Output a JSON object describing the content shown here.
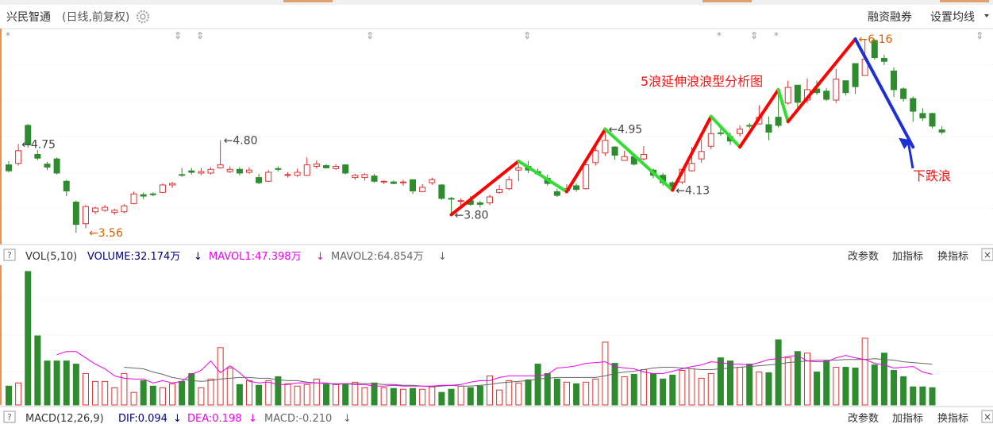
{
  "header": {
    "title": "兴民智通",
    "subtitle": "(日线,前复权)",
    "margin_trading": "融资融券",
    "ma_settings": "设置均线"
  },
  "annotations": {
    "wave_title": "5浪延伸浪浪型分析图",
    "down_wave": "下跌浪"
  },
  "price_labels": [
    {
      "text": "4.75",
      "idx": 1,
      "price": 4.75,
      "side": "right"
    },
    {
      "text": "3.56",
      "idx": 8,
      "price": 3.56,
      "side": "right"
    },
    {
      "text": "4.80",
      "idx": 22,
      "price": 4.8,
      "side": "right"
    },
    {
      "text": "3.80",
      "idx": 46,
      "price": 3.8,
      "side": "right"
    },
    {
      "text": "4.95",
      "idx": 62,
      "price": 4.95,
      "side": "right"
    },
    {
      "text": "4.13",
      "idx": 69,
      "price": 4.13,
      "side": "right"
    },
    {
      "text": "6.16",
      "idx": 88,
      "price": 6.16,
      "side": "right"
    }
  ],
  "vol_panel": {
    "help": "?",
    "title": "VOL(5,10)",
    "volume": "VOLUME:32.174万",
    "mavol1": "MAVOL1:47.398万",
    "mavol2": "MAVOL2:64.854万",
    "params": "改参数",
    "add_indicator": "加指标",
    "switch_indicator": "换指标",
    "close": "×"
  },
  "macd_panel": {
    "help": "?",
    "title": "MACD(12,26,9)",
    "dif": "DIF:0.094",
    "dea": "DEA:0.198",
    "macd": "MACD:-0.210",
    "params": "改参数",
    "add_indicator": "加指标",
    "switch_indicator": "换指标",
    "close": "×"
  },
  "colors": {
    "up": "#e03131",
    "down": "#2e8b2e",
    "wave_red": "#ff0000",
    "wave_green": "#33dd33",
    "wave_blue": "#1f2fd6",
    "label_orange": "#e06000",
    "ma1": "#ee00ee",
    "ma2": "#666666",
    "volume_text": "#000080"
  },
  "chart_data": [
    {
      "type": "candlestick",
      "title": "兴民智通 (日线,前复权)",
      "ylim": [
        3.4,
        6.3
      ],
      "candles": [
        [
          4.47,
          4.39,
          4.52,
          4.37
        ],
        [
          4.49,
          4.66,
          4.75,
          4.46
        ],
        [
          5.0,
          4.74,
          5.02,
          4.7
        ],
        [
          4.61,
          4.56,
          4.67,
          4.53
        ],
        [
          4.48,
          4.44,
          4.51,
          4.4
        ],
        [
          4.55,
          4.36,
          4.57,
          4.34
        ],
        [
          4.25,
          4.12,
          4.27,
          4.05
        ],
        [
          3.97,
          3.67,
          3.99,
          3.56
        ],
        [
          3.68,
          3.91,
          3.93,
          3.62
        ],
        [
          3.84,
          3.89,
          3.91,
          3.81
        ],
        [
          3.86,
          3.9,
          3.93,
          3.84
        ],
        [
          3.83,
          3.86,
          3.88,
          3.8
        ],
        [
          3.84,
          3.92,
          3.94,
          3.82
        ],
        [
          3.95,
          4.08,
          4.11,
          3.94
        ],
        [
          4.07,
          4.05,
          4.1,
          4.01
        ],
        [
          4.08,
          4.07,
          4.1,
          4.05
        ],
        [
          4.1,
          4.2,
          4.22,
          4.09
        ],
        [
          4.2,
          4.22,
          4.24,
          4.16
        ],
        [
          4.34,
          4.33,
          4.43,
          4.31
        ],
        [
          4.39,
          4.37,
          4.43,
          4.34
        ],
        [
          4.36,
          4.38,
          4.43,
          4.33
        ],
        [
          4.36,
          4.41,
          4.44,
          4.34
        ],
        [
          4.43,
          4.47,
          4.8,
          4.42
        ],
        [
          4.38,
          4.41,
          4.45,
          4.36
        ],
        [
          4.41,
          4.36,
          4.44,
          4.33
        ],
        [
          4.37,
          4.4,
          4.44,
          4.35
        ],
        [
          4.3,
          4.23,
          4.35,
          4.21
        ],
        [
          4.25,
          4.37,
          4.4,
          4.24
        ],
        [
          4.42,
          4.41,
          4.45,
          4.38
        ],
        [
          4.33,
          4.34,
          4.37,
          4.3
        ],
        [
          4.33,
          4.37,
          4.42,
          4.31
        ],
        [
          4.33,
          4.47,
          4.57,
          4.32
        ],
        [
          4.45,
          4.48,
          4.53,
          4.42
        ],
        [
          4.46,
          4.43,
          4.48,
          4.42
        ],
        [
          4.42,
          4.45,
          4.48,
          4.4
        ],
        [
          4.47,
          4.36,
          4.48,
          4.34
        ],
        [
          4.3,
          4.33,
          4.35,
          4.27
        ],
        [
          4.3,
          4.34,
          4.36,
          4.26
        ],
        [
          4.32,
          4.25,
          4.35,
          4.23
        ],
        [
          4.24,
          4.25,
          4.26,
          4.21
        ],
        [
          4.24,
          4.22,
          4.26,
          4.21
        ],
        [
          4.23,
          4.24,
          4.27,
          4.19
        ],
        [
          4.27,
          4.12,
          4.28,
          4.08
        ],
        [
          4.11,
          4.17,
          4.21,
          4.1
        ],
        [
          4.23,
          4.27,
          4.3,
          4.2
        ],
        [
          4.2,
          4.02,
          4.21,
          4.0
        ],
        [
          4.02,
          4.01,
          4.04,
          3.8
        ],
        [
          3.98,
          3.99,
          4.02,
          3.92
        ],
        [
          3.99,
          3.94,
          4.05,
          3.92
        ],
        [
          3.96,
          3.94,
          3.99,
          3.9
        ],
        [
          3.96,
          4.04,
          4.07,
          3.93
        ],
        [
          4.1,
          4.14,
          4.2,
          4.08
        ],
        [
          4.15,
          4.27,
          4.32,
          4.13
        ],
        [
          4.4,
          4.43,
          4.48,
          4.25
        ],
        [
          4.45,
          4.4,
          4.52,
          4.36
        ],
        [
          4.38,
          4.35,
          4.42,
          4.33
        ],
        [
          4.29,
          4.22,
          4.34,
          4.19
        ],
        [
          4.11,
          4.06,
          4.15,
          4.04
        ],
        [
          4.13,
          4.15,
          4.21,
          4.11
        ],
        [
          4.19,
          4.14,
          4.22,
          4.11
        ],
        [
          4.15,
          4.47,
          4.48,
          4.14
        ],
        [
          4.5,
          4.66,
          4.71,
          4.46
        ],
        [
          4.63,
          4.8,
          4.95,
          4.59
        ],
        [
          4.71,
          4.6,
          4.72,
          4.54
        ],
        [
          4.53,
          4.58,
          4.66,
          4.53
        ],
        [
          4.58,
          4.48,
          4.59,
          4.46
        ],
        [
          4.55,
          4.61,
          4.72,
          4.53
        ],
        [
          4.4,
          4.33,
          4.42,
          4.29
        ],
        [
          4.33,
          4.23,
          4.36,
          4.19
        ],
        [
          4.23,
          4.17,
          4.25,
          4.13
        ],
        [
          4.24,
          4.41,
          4.42,
          4.21
        ],
        [
          4.39,
          4.49,
          4.71,
          4.38
        ],
        [
          4.55,
          4.65,
          4.81,
          4.5
        ],
        [
          4.72,
          4.89,
          5.12,
          4.68
        ],
        [
          4.9,
          4.89,
          4.96,
          4.86
        ],
        [
          4.85,
          4.79,
          4.9,
          4.74
        ],
        [
          4.89,
          4.95,
          5.0,
          4.85
        ],
        [
          5.0,
          4.99,
          5.03,
          4.96
        ],
        [
          5.02,
          5.11,
          5.27,
          5.01
        ],
        [
          5.01,
          4.91,
          5.12,
          4.8
        ],
        [
          5.11,
          5.0,
          5.48,
          4.97
        ],
        [
          5.3,
          5.51,
          5.6,
          5.28
        ],
        [
          5.54,
          5.31,
          5.54,
          5.21
        ],
        [
          5.34,
          5.48,
          5.63,
          5.3
        ],
        [
          5.49,
          5.44,
          5.6,
          5.41
        ],
        [
          5.46,
          5.35,
          5.5,
          5.33
        ],
        [
          5.34,
          5.62,
          5.76,
          5.3
        ],
        [
          5.6,
          5.44,
          5.6,
          5.4
        ],
        [
          5.83,
          5.52,
          5.83,
          5.42
        ],
        [
          5.67,
          5.89,
          6.15,
          5.68
        ],
        [
          6.14,
          5.91,
          6.16,
          5.88
        ],
        [
          5.9,
          5.86,
          5.95,
          5.81
        ],
        [
          5.73,
          5.48,
          5.78,
          5.38
        ],
        [
          5.49,
          5.36,
          5.51,
          5.32
        ],
        [
          5.36,
          5.19,
          5.39,
          5.05
        ],
        [
          5.16,
          5.1,
          5.23,
          5.06
        ],
        [
          5.16,
          4.99,
          5.17,
          4.96
        ],
        [
          4.94,
          4.91,
          4.99,
          4.88
        ]
      ],
      "wave_lines": [
        {
          "color": "red",
          "points": [
            [
              46,
              3.8
            ],
            [
              53,
              4.52
            ]
          ]
        },
        {
          "color": "green",
          "points": [
            [
              53,
              4.52
            ],
            [
              58,
              4.11
            ]
          ]
        },
        {
          "color": "red",
          "points": [
            [
              58,
              4.11
            ],
            [
              62,
              4.95
            ]
          ]
        },
        {
          "color": "green",
          "points": [
            [
              62,
              4.95
            ],
            [
              69,
              4.13
            ]
          ]
        },
        {
          "color": "red",
          "points": [
            [
              69,
              4.13
            ],
            [
              73,
              5.12
            ]
          ]
        },
        {
          "color": "green",
          "points": [
            [
              73,
              5.12
            ],
            [
              76,
              4.71
            ]
          ]
        },
        {
          "color": "red",
          "points": [
            [
              76,
              4.71
            ],
            [
              80,
              5.48
            ]
          ]
        },
        {
          "color": "green",
          "points": [
            [
              80,
              5.48
            ],
            [
              81,
              5.05
            ]
          ]
        },
        {
          "color": "red",
          "points": [
            [
              81,
              5.05
            ],
            [
              88,
              6.16
            ]
          ]
        },
        {
          "color": "blue",
          "points": [
            [
              88,
              6.16
            ],
            [
              94,
              4.71
            ]
          ]
        }
      ]
    },
    {
      "type": "bar",
      "title": "VOL(5,10)",
      "ylim": [
        0,
        176
      ],
      "volume": [
        24,
        28,
        170,
        88,
        56,
        56,
        56,
        52,
        40,
        30,
        30,
        22,
        40,
        16,
        31,
        24,
        22,
        27,
        30,
        40,
        22,
        33,
        73,
        47,
        26,
        31,
        25,
        31,
        36,
        27,
        24,
        26,
        33,
        26,
        26,
        27,
        29,
        22,
        28,
        22,
        21,
        20,
        21,
        20,
        23,
        16,
        20,
        24,
        22,
        24,
        37,
        19,
        31,
        28,
        32,
        52,
        40,
        33,
        29,
        27,
        29,
        33,
        80,
        53,
        36,
        39,
        45,
        40,
        33,
        38,
        44,
        46,
        34,
        40,
        60,
        56,
        48,
        52,
        42,
        41,
        83,
        60,
        68,
        66,
        42,
        56,
        48,
        48,
        47,
        85,
        51,
        66,
        44,
        36,
        23,
        23,
        22
      ],
      "mavol1": [
        null,
        null,
        null,
        null,
        null,
        64,
        68,
        68,
        60,
        52,
        46,
        37,
        34,
        33,
        33,
        28,
        31,
        28,
        30,
        39,
        44,
        56,
        41,
        50,
        41,
        30,
        28,
        29,
        26,
        26,
        28,
        28,
        28,
        28,
        26,
        27,
        26,
        26,
        24,
        24,
        25,
        24,
        24,
        24,
        24,
        25,
        25,
        26,
        29,
        31,
        31,
        35,
        37,
        37,
        37,
        37,
        39,
        47,
        48,
        50,
        53,
        54,
        55,
        49,
        47,
        46,
        42,
        40,
        40,
        43,
        46,
        49,
        51,
        55,
        54,
        52,
        52,
        51,
        54,
        58,
        59,
        62,
        63,
        56,
        55,
        55,
        60,
        63,
        60,
        58,
        53,
        51,
        47,
        48,
        49,
        42,
        39
      ],
      "mavol2": [
        null,
        null,
        null,
        null,
        null,
        null,
        null,
        null,
        null,
        null,
        null,
        null,
        48,
        47,
        46,
        42,
        39,
        35,
        33,
        31,
        30,
        31,
        33,
        34,
        35,
        35,
        34,
        34,
        32,
        31,
        31,
        29,
        28,
        27,
        27,
        27,
        27,
        27,
        27,
        26,
        26,
        25,
        25,
        24,
        23,
        24,
        25,
        24,
        24,
        25,
        26,
        28,
        29,
        30,
        31,
        33,
        34,
        35,
        35,
        35,
        35,
        35,
        37,
        40,
        42,
        43,
        45,
        47,
        48,
        48,
        47,
        46,
        45,
        45,
        46,
        47,
        48,
        49,
        50,
        51,
        52,
        54,
        55,
        56,
        57,
        57,
        57,
        58,
        58,
        58,
        59,
        58,
        57,
        55,
        54,
        53,
        52
      ]
    }
  ]
}
